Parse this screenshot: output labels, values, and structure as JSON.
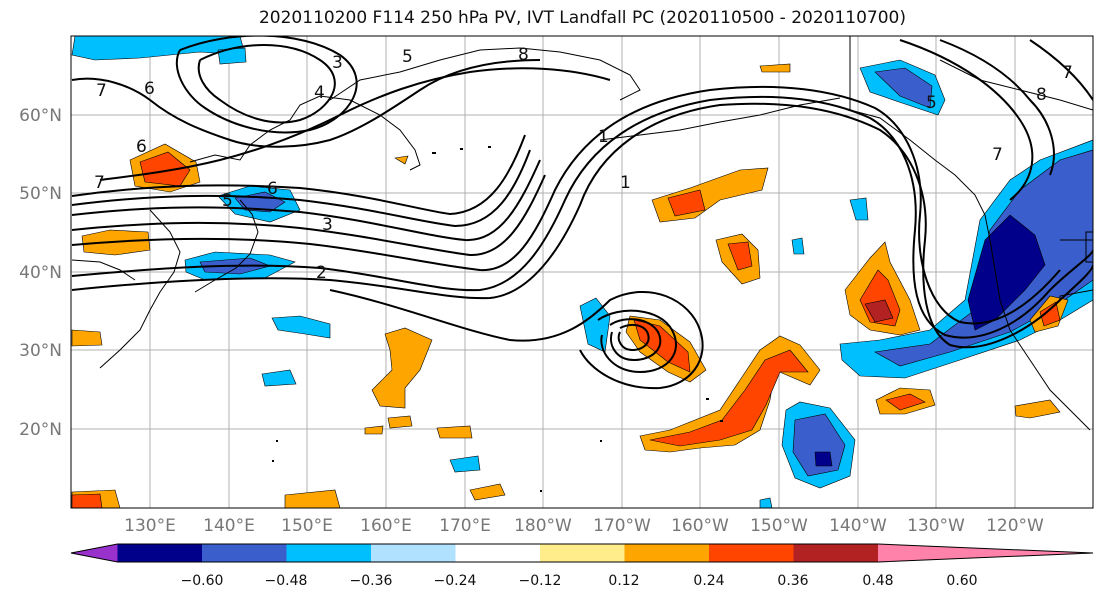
{
  "title": "2020110200 F114 250 hPa PV, IVT Landfall PC (2020110500 - 2020110700)",
  "lat_labels": [
    "60°N",
    "50°N",
    "40°N",
    "30°N",
    "20°N"
  ],
  "lon_labels": [
    "130°E",
    "140°E",
    "150°E",
    "160°E",
    "170°E",
    "180°W",
    "170°W",
    "160°W",
    "150°W",
    "140°W",
    "130°W",
    "120°W"
  ],
  "colorbar": {
    "tick_labels": [
      "−0.60",
      "−0.48",
      "−0.36",
      "−0.24",
      "−0.12",
      "0.12",
      "0.24",
      "0.36",
      "0.48",
      "0.60"
    ],
    "colors": [
      "#9932cc",
      "#00008b",
      "#3a5fcd",
      "#00bfff",
      "#b0e2ff",
      "#ffffff",
      "#ffec8b",
      "#ffa500",
      "#ff4500",
      "#b22222",
      "#ff82ab"
    ]
  },
  "contour_labels": [
    "7",
    "6",
    "5",
    "4",
    "3",
    "8",
    "7",
    "1",
    "1",
    "6",
    "7",
    "5",
    "6",
    "3",
    "2",
    "8",
    "5",
    "7"
  ]
}
